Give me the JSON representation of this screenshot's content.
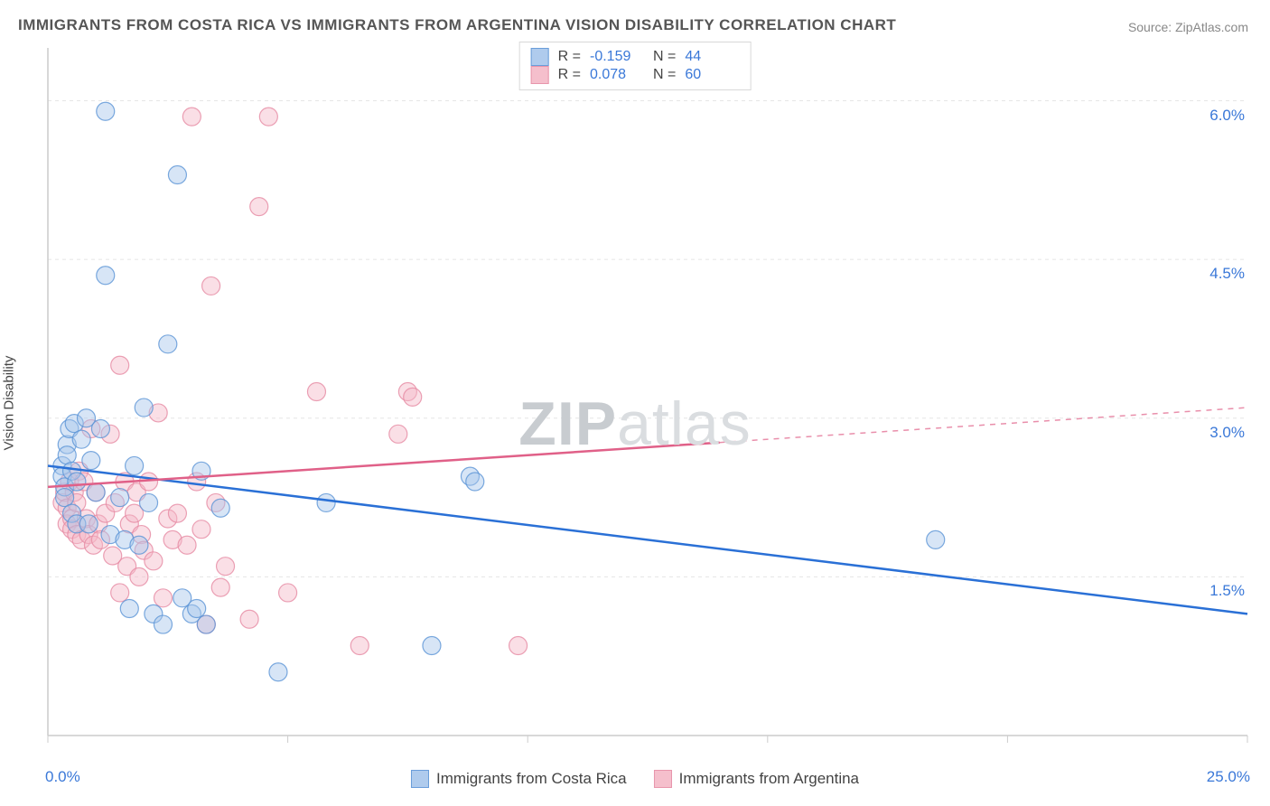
{
  "title": "IMMIGRANTS FROM COSTA RICA VS IMMIGRANTS FROM ARGENTINA VISION DISABILITY CORRELATION CHART",
  "source": "Source: ZipAtlas.com",
  "ylabel": "Vision Disability",
  "watermark_a": "ZIP",
  "watermark_b": "atlas",
  "chart": {
    "type": "scatter",
    "xlim": [
      0,
      25
    ],
    "ylim": [
      0,
      6.5
    ],
    "x_min_label": "0.0%",
    "x_max_label": "25.0%",
    "y_ticks": [
      1.5,
      3.0,
      4.5,
      6.0
    ],
    "y_tick_labels": [
      "1.5%",
      "3.0%",
      "4.5%",
      "6.0%"
    ],
    "x_ticks": [
      0,
      5,
      10,
      15,
      20,
      25
    ],
    "grid_color": "#e5e5e5",
    "axis_color": "#cccccc",
    "background_color": "#ffffff",
    "marker_radius": 10,
    "marker_opacity": 0.45,
    "line_width": 2.5,
    "series": [
      {
        "name": "Immigrants from Costa Rica",
        "color_fill": "#a7c6ec",
        "color_stroke": "#5a93d6",
        "line_color": "#2a70d6",
        "R": "-0.159",
        "N": "44",
        "trend": {
          "x1": 0,
          "y1": 2.55,
          "x2": 25,
          "y2": 1.15,
          "dash_from_x": null
        },
        "points": [
          [
            0.3,
            2.55
          ],
          [
            0.3,
            2.45
          ],
          [
            0.35,
            2.35
          ],
          [
            0.35,
            2.25
          ],
          [
            0.4,
            2.75
          ],
          [
            0.4,
            2.65
          ],
          [
            0.45,
            2.9
          ],
          [
            0.5,
            2.5
          ],
          [
            0.5,
            2.1
          ],
          [
            0.55,
            2.95
          ],
          [
            0.6,
            2.4
          ],
          [
            0.6,
            2.0
          ],
          [
            0.7,
            2.8
          ],
          [
            0.8,
            3.0
          ],
          [
            0.85,
            2.0
          ],
          [
            0.9,
            2.6
          ],
          [
            1.0,
            2.3
          ],
          [
            1.1,
            2.9
          ],
          [
            1.2,
            4.35
          ],
          [
            1.2,
            5.9
          ],
          [
            1.3,
            1.9
          ],
          [
            1.5,
            2.25
          ],
          [
            1.6,
            1.85
          ],
          [
            1.7,
            1.2
          ],
          [
            1.8,
            2.55
          ],
          [
            1.9,
            1.8
          ],
          [
            2.0,
            3.1
          ],
          [
            2.1,
            2.2
          ],
          [
            2.2,
            1.15
          ],
          [
            2.4,
            1.05
          ],
          [
            2.5,
            3.7
          ],
          [
            2.7,
            5.3
          ],
          [
            2.8,
            1.3
          ],
          [
            3.0,
            1.15
          ],
          [
            3.1,
            1.2
          ],
          [
            3.2,
            2.5
          ],
          [
            3.3,
            1.05
          ],
          [
            3.6,
            2.15
          ],
          [
            4.8,
            0.6
          ],
          [
            5.8,
            2.2
          ],
          [
            8.0,
            0.85
          ],
          [
            8.8,
            2.45
          ],
          [
            8.9,
            2.4
          ],
          [
            18.5,
            1.85
          ]
        ]
      },
      {
        "name": "Immigrants from Argentina",
        "color_fill": "#f4b9c7",
        "color_stroke": "#e68aa3",
        "line_color": "#e06088",
        "R": "0.078",
        "N": "60",
        "trend": {
          "x1": 0,
          "y1": 2.35,
          "x2": 25,
          "y2": 3.1,
          "dash_from_x": 14
        },
        "points": [
          [
            0.3,
            2.2
          ],
          [
            0.35,
            2.3
          ],
          [
            0.4,
            2.15
          ],
          [
            0.4,
            2.0
          ],
          [
            0.45,
            2.4
          ],
          [
            0.5,
            2.05
          ],
          [
            0.5,
            1.95
          ],
          [
            0.55,
            2.3
          ],
          [
            0.6,
            1.9
          ],
          [
            0.6,
            2.2
          ],
          [
            0.65,
            2.5
          ],
          [
            0.7,
            1.85
          ],
          [
            0.75,
            2.4
          ],
          [
            0.8,
            2.05
          ],
          [
            0.85,
            1.9
          ],
          [
            0.9,
            2.9
          ],
          [
            0.95,
            1.8
          ],
          [
            1.0,
            2.3
          ],
          [
            1.05,
            2.0
          ],
          [
            1.1,
            1.85
          ],
          [
            1.2,
            2.1
          ],
          [
            1.3,
            2.85
          ],
          [
            1.35,
            1.7
          ],
          [
            1.4,
            2.2
          ],
          [
            1.5,
            1.35
          ],
          [
            1.5,
            3.5
          ],
          [
            1.6,
            2.4
          ],
          [
            1.65,
            1.6
          ],
          [
            1.7,
            2.0
          ],
          [
            1.8,
            2.1
          ],
          [
            1.85,
            2.3
          ],
          [
            1.9,
            1.5
          ],
          [
            1.95,
            1.9
          ],
          [
            2.0,
            1.75
          ],
          [
            2.1,
            2.4
          ],
          [
            2.2,
            1.65
          ],
          [
            2.3,
            3.05
          ],
          [
            2.4,
            1.3
          ],
          [
            2.5,
            2.05
          ],
          [
            2.6,
            1.85
          ],
          [
            2.7,
            2.1
          ],
          [
            2.9,
            1.8
          ],
          [
            3.0,
            5.85
          ],
          [
            3.1,
            2.4
          ],
          [
            3.2,
            1.95
          ],
          [
            3.3,
            1.05
          ],
          [
            3.4,
            4.25
          ],
          [
            3.5,
            2.2
          ],
          [
            3.6,
            1.4
          ],
          [
            3.7,
            1.6
          ],
          [
            4.2,
            1.1
          ],
          [
            4.4,
            5.0
          ],
          [
            4.6,
            5.85
          ],
          [
            5.0,
            1.35
          ],
          [
            5.6,
            3.25
          ],
          [
            6.5,
            0.85
          ],
          [
            7.3,
            2.85
          ],
          [
            7.5,
            3.25
          ],
          [
            7.6,
            3.2
          ],
          [
            9.8,
            0.85
          ]
        ]
      }
    ]
  },
  "legend": {
    "series1": "Immigrants from Costa Rica",
    "series2": "Immigrants from Argentina"
  }
}
